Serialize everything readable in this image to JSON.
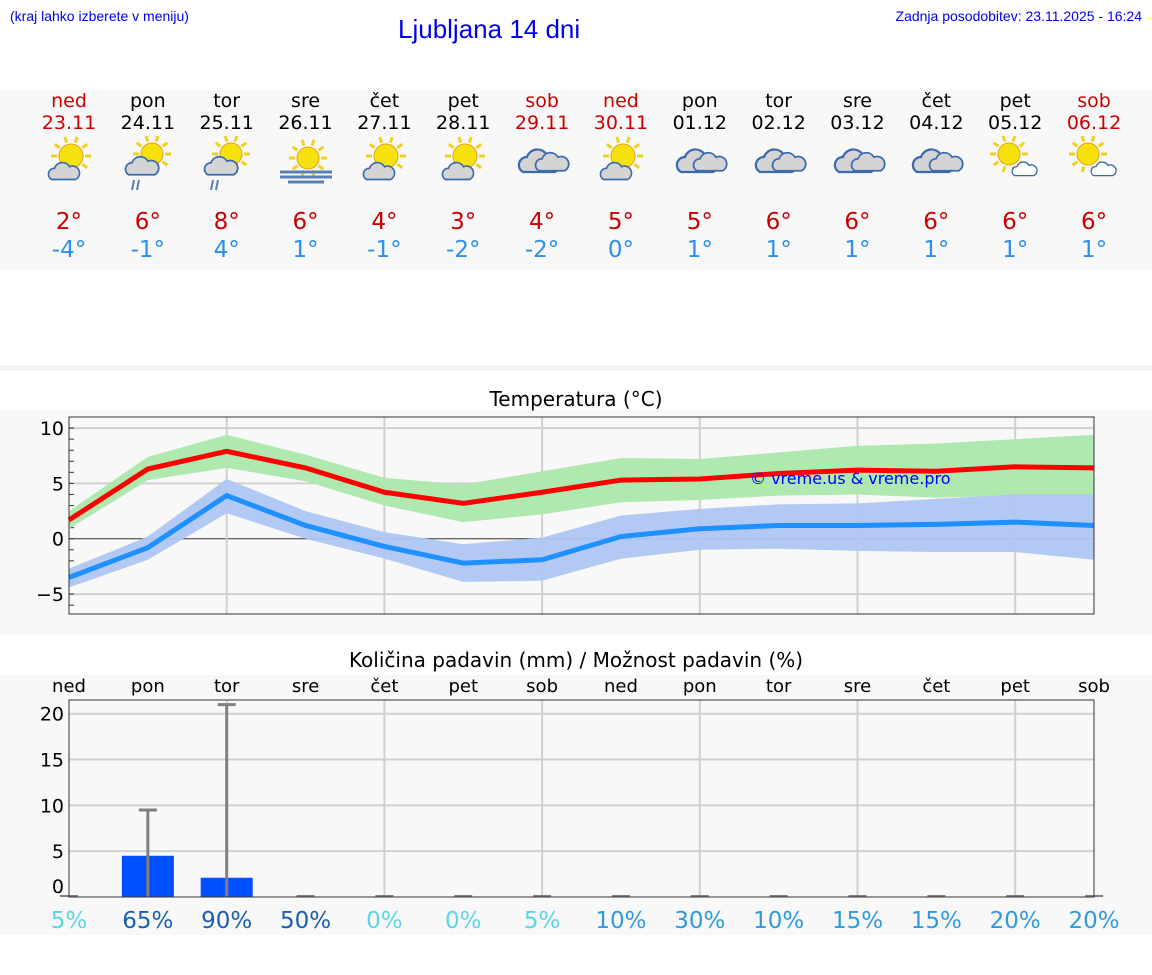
{
  "header": {
    "hint": "(kraj lahko izberete v meniju)",
    "title": "Ljubljana 14 dni",
    "updated": "Zadnja posodobitev: 23.11.2025 - 16:24"
  },
  "days": [
    {
      "name": "ned",
      "date": "23.11",
      "weekend": true,
      "icon": "sun-cloud",
      "max": "2°",
      "min": "-4°"
    },
    {
      "name": "pon",
      "date": "24.11",
      "weekend": false,
      "icon": "sun-cloud-rain",
      "max": "6°",
      "min": "-1°"
    },
    {
      "name": "tor",
      "date": "25.11",
      "weekend": false,
      "icon": "sun-cloud-rain",
      "max": "8°",
      "min": "4°"
    },
    {
      "name": "sre",
      "date": "26.11",
      "weekend": false,
      "icon": "sun-fog",
      "max": "6°",
      "min": "1°"
    },
    {
      "name": "čet",
      "date": "27.11",
      "weekend": false,
      "icon": "sun-cloud",
      "max": "4°",
      "min": "-1°"
    },
    {
      "name": "pet",
      "date": "28.11",
      "weekend": false,
      "icon": "sun-cloud",
      "max": "3°",
      "min": "-2°"
    },
    {
      "name": "sob",
      "date": "29.11",
      "weekend": true,
      "icon": "cloudy",
      "max": "4°",
      "min": "-2°"
    },
    {
      "name": "ned",
      "date": "30.11",
      "weekend": true,
      "icon": "sun-cloud",
      "max": "5°",
      "min": "0°"
    },
    {
      "name": "pon",
      "date": "01.12",
      "weekend": false,
      "icon": "cloudy",
      "max": "5°",
      "min": "1°"
    },
    {
      "name": "tor",
      "date": "02.12",
      "weekend": false,
      "icon": "cloudy",
      "max": "6°",
      "min": "1°"
    },
    {
      "name": "sre",
      "date": "03.12",
      "weekend": false,
      "icon": "cloudy",
      "max": "6°",
      "min": "1°"
    },
    {
      "name": "čet",
      "date": "04.12",
      "weekend": false,
      "icon": "cloudy",
      "max": "6°",
      "min": "1°"
    },
    {
      "name": "pet",
      "date": "05.12",
      "weekend": false,
      "icon": "sun-small-cloud",
      "max": "6°",
      "min": "1°"
    },
    {
      "name": "sob",
      "date": "06.12",
      "weekend": true,
      "icon": "sun-small-cloud",
      "max": "6°",
      "min": "1°"
    }
  ],
  "colors": {
    "weekend": "#cc0000",
    "max": "#ff0000",
    "min": "#1e90ff",
    "max_band": "#ace8ac",
    "min_band": "#aec6f2",
    "bar": "#0050ff",
    "error": "#808080"
  },
  "chart_data": [
    {
      "type": "line",
      "title": "Temperatura (°C)",
      "ylim": [
        -6.8,
        11
      ],
      "yticks": [
        10,
        5,
        0,
        -5
      ],
      "ytick_labels": [
        "10",
        "5",
        "0",
        "−5"
      ],
      "grid": true,
      "watermark": "© vreme.us & vreme.pro",
      "series": [
        {
          "values": [
            1.7,
            6.3,
            7.9,
            6.4,
            4.2,
            3.2,
            4.2,
            5.3,
            5.4,
            5.9,
            6.2,
            6.1,
            6.5,
            6.4
          ],
          "band_low": [
            0.9,
            5.3,
            6.4,
            5.2,
            3.0,
            1.5,
            2.2,
            3.3,
            3.5,
            3.9,
            4.0,
            3.7,
            3.9,
            4.0
          ],
          "band_high": [
            2.5,
            7.4,
            9.4,
            7.6,
            5.5,
            4.9,
            6.1,
            7.3,
            7.2,
            7.8,
            8.4,
            8.6,
            9.0,
            9.4
          ]
        },
        {
          "values": [
            -3.5,
            -0.8,
            3.9,
            1.2,
            -0.7,
            -2.2,
            -1.9,
            0.2,
            0.9,
            1.2,
            1.2,
            1.3,
            1.5,
            1.2
          ],
          "band_low": [
            -4.4,
            -1.9,
            2.3,
            0.0,
            -1.8,
            -3.9,
            -3.8,
            -1.8,
            -1.0,
            -0.9,
            -1.1,
            -1.2,
            -1.2,
            -1.9
          ],
          "band_high": [
            -2.7,
            0.2,
            5.4,
            2.5,
            0.6,
            -0.5,
            0.1,
            2.1,
            2.7,
            3.1,
            3.2,
            3.6,
            4.0,
            4.0
          ]
        }
      ]
    },
    {
      "type": "bar",
      "title": "Količina padavin (mm) / Možnost padavin (%)",
      "categories": [
        "ned",
        "pon",
        "tor",
        "sre",
        "čet",
        "pet",
        "sob",
        "ned",
        "pon",
        "tor",
        "sre",
        "čet",
        "pet",
        "sob"
      ],
      "values": [
        0,
        4.5,
        2.1,
        0,
        0,
        0,
        0,
        0,
        0,
        0,
        0,
        0,
        0,
        0
      ],
      "error_high": [
        0,
        9.5,
        21,
        0,
        0,
        0,
        0,
        0,
        0,
        0,
        0,
        0,
        0,
        0
      ],
      "ylim": [
        0,
        21.5
      ],
      "yticks": [
        20,
        15,
        10,
        5,
        0
      ],
      "ytick_labels": [
        "20",
        "15",
        "10",
        "5",
        "0"
      ],
      "probability": [
        "5%",
        "65%",
        "90%",
        "50%",
        "0%",
        "0%",
        "5%",
        "10%",
        "30%",
        "10%",
        "15%",
        "15%",
        "20%",
        "20%"
      ],
      "probability_colors": [
        "#5ad6ea",
        "#1a5fb0",
        "#1a5fb0",
        "#1a5fb0",
        "#5ad6ea",
        "#5ad6ea",
        "#5ad6ea",
        "#2e9be0",
        "#2e9be0",
        "#2e9be0",
        "#2e9be0",
        "#2e9be0",
        "#2e9be0",
        "#2e9be0"
      ]
    }
  ]
}
